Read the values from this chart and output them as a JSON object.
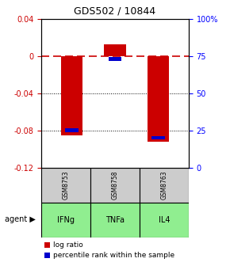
{
  "title": "GDS502 / 10844",
  "samples": [
    "GSM8753",
    "GSM8758",
    "GSM8763"
  ],
  "agents": [
    "IFNg",
    "TNFa",
    "IL4"
  ],
  "log_ratios": [
    -0.085,
    0.012,
    -0.092
  ],
  "percentile_ranks": [
    25.0,
    73.0,
    20.0
  ],
  "ylim_left": [
    -0.12,
    0.04
  ],
  "ylim_right": [
    0,
    100
  ],
  "yticks_left": [
    0.04,
    0,
    -0.04,
    -0.08,
    -0.12
  ],
  "yticks_right": [
    100,
    75,
    50,
    25,
    0
  ],
  "bar_color_red": "#cc0000",
  "bar_color_blue": "#0000cc",
  "zero_line_color": "#cc0000",
  "grid_color": "#000000",
  "agent_colors": [
    "#ccffcc",
    "#99ff99",
    "#66ff66"
  ],
  "sample_bg_color": "#cccccc",
  "legend_red_label": "log ratio",
  "legend_blue_label": "percentile rank within the sample",
  "bar_width": 0.25
}
